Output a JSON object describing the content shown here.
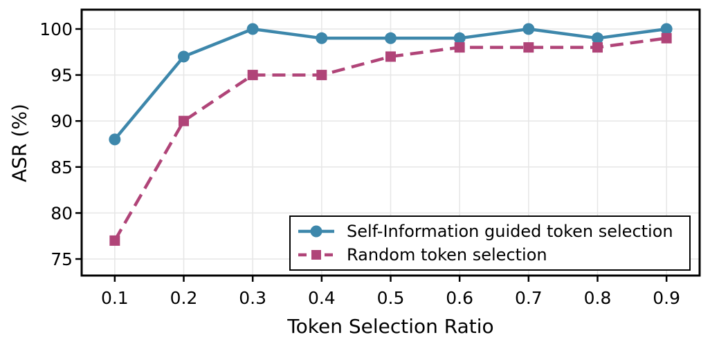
{
  "chart_data": {
    "type": "line",
    "title": "",
    "xlabel": "Token Selection Ratio",
    "ylabel": "ASR (%)",
    "x": [
      0.1,
      0.2,
      0.3,
      0.4,
      0.5,
      0.6,
      0.7,
      0.8,
      0.9
    ],
    "xtick_labels": [
      "0.1",
      "0.2",
      "0.3",
      "0.4",
      "0.5",
      "0.6",
      "0.7",
      "0.8",
      "0.9"
    ],
    "yticks": [
      75,
      80,
      85,
      90,
      95,
      100
    ],
    "ytick_labels": [
      "75",
      "80",
      "85",
      "90",
      "95",
      "100"
    ],
    "xlim": [
      0.052,
      0.948
    ],
    "ylim": [
      73.2,
      102.1
    ],
    "grid": true,
    "legend": {
      "position": "lower-right-inside"
    },
    "series": [
      {
        "name": "Self-Information guided token selection",
        "values": [
          88,
          97,
          100,
          99,
          99,
          99,
          100,
          99,
          100
        ],
        "color": "#3d87ab",
        "marker": "circle",
        "line_style": "solid"
      },
      {
        "name": "Random token selection",
        "values": [
          77,
          90,
          95,
          95,
          97,
          98,
          98,
          98,
          99
        ],
        "color": "#b04478",
        "marker": "square",
        "line_style": "dashed"
      }
    ],
    "colors": {
      "grid": "#e6e6e6",
      "spine": "#000000",
      "background": "#ffffff",
      "text": "#000000"
    }
  }
}
